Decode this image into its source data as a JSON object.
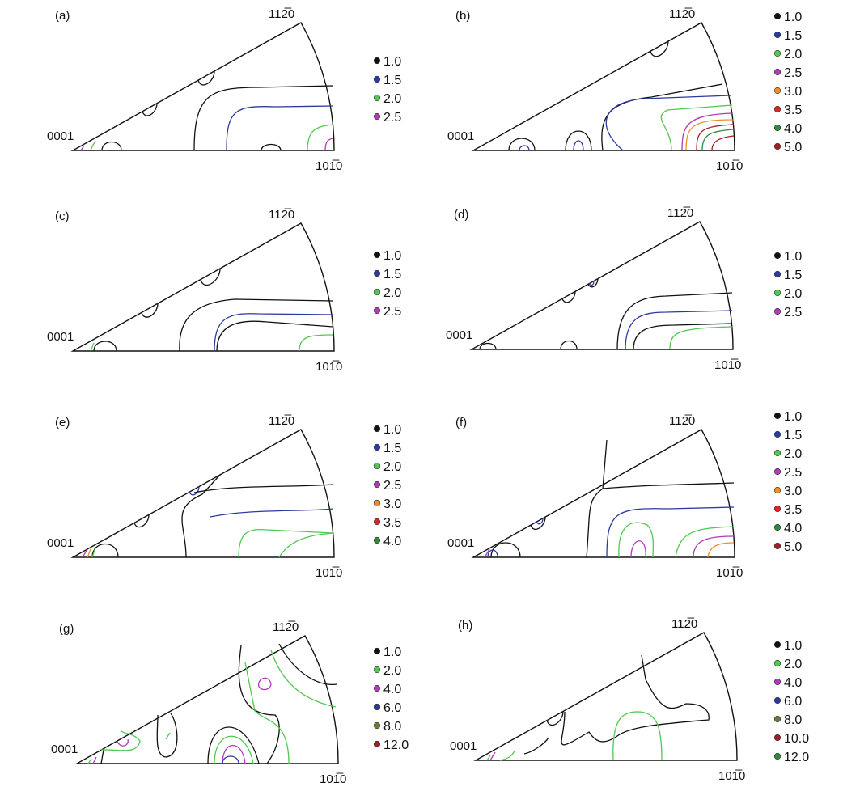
{
  "colors": {
    "black": "#111111",
    "blue": "#2b3a9e",
    "green": "#4fc94f",
    "purple": "#b03ab8",
    "orange": "#e8902a",
    "red": "#d8262a",
    "darkgreen": "#2e8b3a",
    "darkred": "#9e1f2a",
    "olive": "#6b7a3a"
  },
  "axis_labels": {
    "apex": "0001",
    "right": "101̅0",
    "top": "112̅0"
  },
  "panels": [
    {
      "id": "a",
      "label": "(a)",
      "legend": [
        {
          "value": "1.0",
          "color": "black"
        },
        {
          "value": "1.5",
          "color": "blue"
        },
        {
          "value": "2.0",
          "color": "green"
        },
        {
          "value": "2.5",
          "color": "purple"
        }
      ]
    },
    {
      "id": "b",
      "label": "(b)",
      "legend": [
        {
          "value": "1.0",
          "color": "black"
        },
        {
          "value": "1.5",
          "color": "blue"
        },
        {
          "value": "2.0",
          "color": "green"
        },
        {
          "value": "2.5",
          "color": "purple"
        },
        {
          "value": "3.0",
          "color": "orange"
        },
        {
          "value": "3.5",
          "color": "red"
        },
        {
          "value": "4.0",
          "color": "darkgreen"
        },
        {
          "value": "5.0",
          "color": "darkred"
        }
      ]
    },
    {
      "id": "c",
      "label": "(c)",
      "legend": [
        {
          "value": "1.0",
          "color": "black"
        },
        {
          "value": "1.5",
          "color": "blue"
        },
        {
          "value": "2.0",
          "color": "green"
        },
        {
          "value": "2.5",
          "color": "purple"
        }
      ]
    },
    {
      "id": "d",
      "label": "(d)",
      "legend": [
        {
          "value": "1.0",
          "color": "black"
        },
        {
          "value": "1.5",
          "color": "blue"
        },
        {
          "value": "2.0",
          "color": "green"
        },
        {
          "value": "2.5",
          "color": "purple"
        }
      ]
    },
    {
      "id": "e",
      "label": "(e)",
      "legend": [
        {
          "value": "1.0",
          "color": "black"
        },
        {
          "value": "1.5",
          "color": "blue"
        },
        {
          "value": "2.0",
          "color": "green"
        },
        {
          "value": "2.5",
          "color": "purple"
        },
        {
          "value": "3.0",
          "color": "orange"
        },
        {
          "value": "3.5",
          "color": "red"
        },
        {
          "value": "4.0",
          "color": "darkgreen"
        }
      ]
    },
    {
      "id": "f",
      "label": "(f)",
      "legend": [
        {
          "value": "1.0",
          "color": "black"
        },
        {
          "value": "1.5",
          "color": "blue"
        },
        {
          "value": "2.0",
          "color": "green"
        },
        {
          "value": "2.5",
          "color": "purple"
        },
        {
          "value": "3.0",
          "color": "orange"
        },
        {
          "value": "3.5",
          "color": "red"
        },
        {
          "value": "4.0",
          "color": "darkgreen"
        },
        {
          "value": "5.0",
          "color": "darkred"
        }
      ]
    },
    {
      "id": "g",
      "label": "(g)",
      "legend": [
        {
          "value": "1.0",
          "color": "black"
        },
        {
          "value": "2.0",
          "color": "green"
        },
        {
          "value": "4.0",
          "color": "purple"
        },
        {
          "value": "6.0",
          "color": "blue"
        },
        {
          "value": "8.0",
          "color": "olive"
        },
        {
          "value": "12.0",
          "color": "darkred"
        }
      ]
    },
    {
      "id": "h",
      "label": "(h)",
      "legend": [
        {
          "value": "1.0",
          "color": "black"
        },
        {
          "value": "2.0",
          "color": "green"
        },
        {
          "value": "4.0",
          "color": "purple"
        },
        {
          "value": "6.0",
          "color": "blue"
        },
        {
          "value": "8.0",
          "color": "olive"
        },
        {
          "value": "10.0",
          "color": "darkred"
        },
        {
          "value": "12.0",
          "color": "darkgreen"
        }
      ]
    }
  ]
}
